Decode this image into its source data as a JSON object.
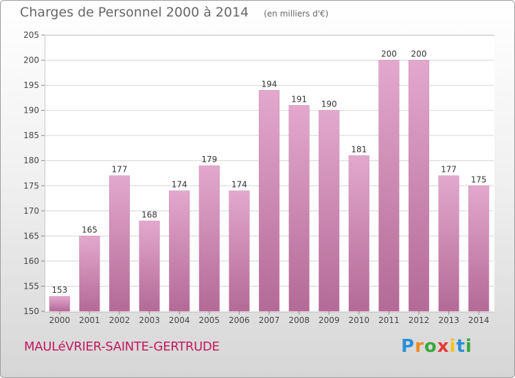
{
  "title": "Charges de Personnel 2000 à 2014",
  "subtitle": "(en milliers d'€)",
  "commune": "MAULéVRIER-SAINTE-GERTRUDE",
  "logo": {
    "letters": [
      "P",
      "r",
      "o",
      "x",
      "i",
      "t",
      "i"
    ],
    "colors": [
      "#2a8fd8",
      "#f08a1c",
      "#38a83a",
      "#e53935",
      "#f2c21b",
      "#2a8fd8",
      "#38a83a"
    ]
  },
  "colors": {
    "bar_top": "#e3a8cd",
    "bar_bottom": "#b36a96",
    "commune_text": "#c2185b",
    "title_text": "#666666"
  },
  "chart_data": {
    "type": "bar",
    "categories": [
      "2000",
      "2001",
      "2002",
      "2003",
      "2004",
      "2005",
      "2006",
      "2007",
      "2008",
      "2009",
      "2010",
      "2011",
      "2012",
      "2013",
      "2014"
    ],
    "values": [
      153,
      165,
      177,
      168,
      174,
      179,
      174,
      194,
      191,
      190,
      181,
      200,
      200,
      177,
      175
    ],
    "data_labels": [
      "153",
      "165",
      "177",
      "168",
      "174",
      "179",
      "174",
      "194",
      "191",
      "190",
      "181",
      "200",
      "200",
      "177",
      "175"
    ],
    "ylim": [
      150,
      205
    ],
    "yticks": [
      "150",
      "155",
      "160",
      "165",
      "170",
      "175",
      "180",
      "185",
      "190",
      "195",
      "200",
      "205"
    ],
    "grid": "horizontal",
    "xlabel": "",
    "ylabel": ""
  }
}
